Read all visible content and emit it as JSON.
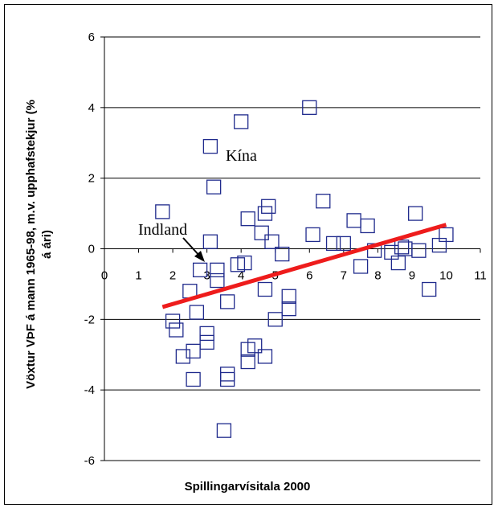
{
  "chart_data": {
    "type": "scatter",
    "xlabel": "Spillingarvísitala 2000",
    "ylabel": "Vöxtur VÞF á mann 1965-98, m.v. upphafstekjur (%",
    "ylabel_line2": "á ári)",
    "xlim": [
      0,
      11
    ],
    "ylim": [
      -6,
      6
    ],
    "x_ticks": [
      "0",
      "1",
      "2",
      "3",
      "4",
      "5",
      "6",
      "7",
      "8",
      "9",
      "10",
      "11"
    ],
    "y_ticks": [
      "6",
      "4",
      "2",
      "0",
      "-2",
      "-4",
      "-6"
    ],
    "grid": "horizontal",
    "marker_color": "#1f2a8c",
    "trendline_color": "#ee1c1c",
    "annotations": [
      {
        "text": "Kína",
        "x": 3.3,
        "y": 2.2
      },
      {
        "text": "Indland",
        "x": 2.9,
        "y": 0.9
      }
    ],
    "trendline": {
      "x": [
        1.7,
        10.0
      ],
      "y": [
        -1.65,
        0.68
      ]
    },
    "points": [
      [
        6.0,
        4.0
      ],
      [
        4.0,
        3.6
      ],
      [
        3.1,
        2.9
      ],
      [
        3.2,
        1.75
      ],
      [
        1.7,
        1.05
      ],
      [
        4.8,
        1.2
      ],
      [
        4.7,
        1.0
      ],
      [
        4.2,
        0.85
      ],
      [
        6.4,
        1.35
      ],
      [
        9.1,
        1.0
      ],
      [
        7.7,
        0.65
      ],
      [
        7.3,
        0.8
      ],
      [
        4.6,
        0.45
      ],
      [
        6.1,
        0.4
      ],
      [
        10.0,
        0.4
      ],
      [
        6.7,
        0.15
      ],
      [
        7.0,
        0.15
      ],
      [
        4.9,
        0.2
      ],
      [
        5.2,
        -0.15
      ],
      [
        8.4,
        -0.1
      ],
      [
        8.8,
        0.0
      ],
      [
        9.2,
        -0.05
      ],
      [
        9.8,
        0.1
      ],
      [
        8.7,
        0.05
      ],
      [
        7.9,
        -0.05
      ],
      [
        7.5,
        -0.5
      ],
      [
        8.6,
        -0.4
      ],
      [
        9.5,
        -1.15
      ],
      [
        3.1,
        0.2
      ],
      [
        3.3,
        -0.6
      ],
      [
        3.3,
        -0.9
      ],
      [
        2.8,
        -0.6
      ],
      [
        3.9,
        -0.45
      ],
      [
        4.1,
        -0.4
      ],
      [
        2.5,
        -1.2
      ],
      [
        4.7,
        -1.15
      ],
      [
        5.4,
        -1.35
      ],
      [
        5.4,
        -1.7
      ],
      [
        3.6,
        -1.5
      ],
      [
        2.7,
        -1.8
      ],
      [
        5.0,
        -2.0
      ],
      [
        2.0,
        -2.05
      ],
      [
        2.1,
        -2.3
      ],
      [
        3.0,
        -2.4
      ],
      [
        3.0,
        -2.65
      ],
      [
        2.6,
        -2.9
      ],
      [
        2.3,
        -3.05
      ],
      [
        4.2,
        -2.85
      ],
      [
        4.4,
        -2.75
      ],
      [
        4.7,
        -3.05
      ],
      [
        4.2,
        -3.2
      ],
      [
        2.6,
        -3.7
      ],
      [
        3.6,
        -3.55
      ],
      [
        3.6,
        -3.7
      ],
      [
        3.5,
        -5.15
      ]
    ]
  }
}
